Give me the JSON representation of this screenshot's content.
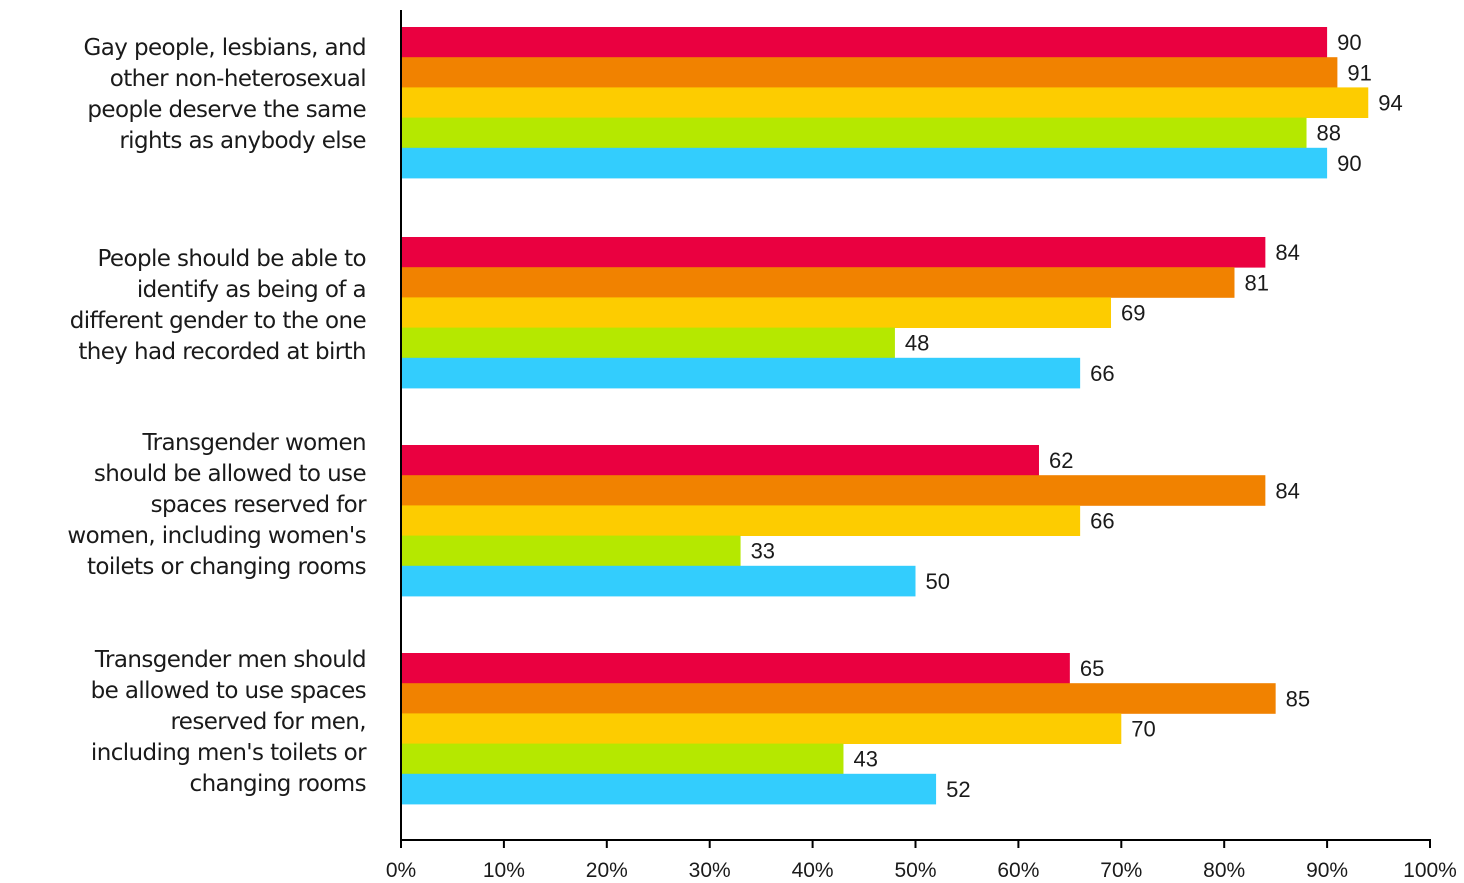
{
  "chart_data": {
    "type": "bar",
    "orientation": "horizontal",
    "categories": [
      "Gay people, lesbians, and other non-heterosexual people deserve the same rights as anybody else",
      "People should be able to identify as being of a different gender to the one they had recorded at birth",
      "Transgender women should be allowed to use spaces reserved for women, including women's toilets or changing rooms",
      "Transgender men should be allowed to use spaces reserved for men, including men's toilets or changing rooms"
    ],
    "category_lines": [
      [
        "Gay people, lesbians, and",
        "other non-heterosexual",
        "people deserve the same",
        "rights as anybody else"
      ],
      [
        "People should be able to",
        "identify as being of a",
        "different gender to the one",
        "they had recorded at birth"
      ],
      [
        "Transgender women",
        "should be allowed to use",
        "spaces reserved for",
        "women, including women's",
        "toilets or changing rooms"
      ],
      [
        "Transgender men should",
        "be allowed to use spaces",
        "reserved for men,",
        "including men's toilets or",
        "changing rooms"
      ]
    ],
    "series": [
      {
        "color": "#ea0040",
        "values": [
          90,
          84,
          62,
          65
        ]
      },
      {
        "color": "#f18200",
        "values": [
          91,
          81,
          84,
          85
        ]
      },
      {
        "color": "#fdcc00",
        "values": [
          94,
          69,
          66,
          70
        ]
      },
      {
        "color": "#b5e800",
        "values": [
          88,
          48,
          33,
          43
        ]
      },
      {
        "color": "#33cdfd",
        "values": [
          90,
          66,
          50,
          52
        ]
      }
    ],
    "xlim": [
      0,
      100
    ],
    "xticks": [
      "0%",
      "10%",
      "20%",
      "30%",
      "40%",
      "50%",
      "60%",
      "70%",
      "80%",
      "90%",
      "100%"
    ],
    "grid": false,
    "legend": "none",
    "title": "",
    "xlabel": "",
    "ylabel": ""
  }
}
